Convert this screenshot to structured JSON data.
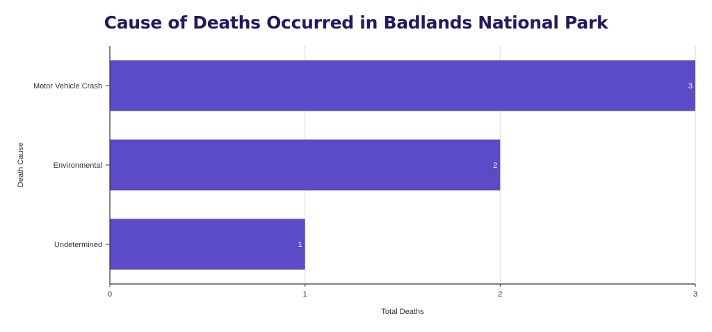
{
  "chart_data": {
    "type": "bar",
    "orientation": "horizontal",
    "title": "Cause of Deaths Occurred in Badlands National Park",
    "xlabel": "Total Deaths",
    "ylabel": "Death Cause",
    "categories": [
      "Motor Vehicle Crash",
      "Environmental",
      "Undetermined"
    ],
    "values": [
      3,
      2,
      1
    ],
    "data_labels": [
      "3",
      "2",
      "1"
    ],
    "xlim": [
      0,
      3
    ],
    "x_ticks": [
      "0",
      "1",
      "2",
      "3"
    ],
    "grid": true,
    "legend": "none",
    "bar_color": "#5b4bc8",
    "title_color": "#1f1a63"
  }
}
